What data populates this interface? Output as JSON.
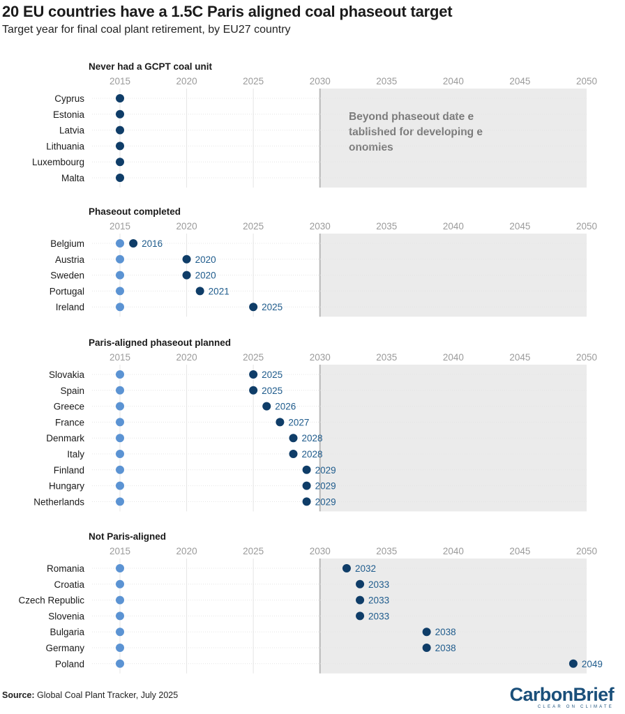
{
  "title": "20 EU countries have a 1.5C Paris aligned coal phaseout target",
  "subtitle": "Target year for final coal plant retirement, by EU27 country",
  "source_label": "Source:",
  "source_text": " Global Coal Plant Tracker, July 2025",
  "logo": {
    "main": "CarbonBrief",
    "tagline": "CLEAR ON CLIMATE"
  },
  "colors": {
    "dot_end": "#0f3d68",
    "dot_start": "#5b93d3",
    "bar_light": "#a9c6e8",
    "bar_dark": "#7b97b4",
    "value_label": "#1e5b8c",
    "shade": "#ebebeb",
    "line_2030": "#b8b8b8",
    "tick_label": "#9a9a9a",
    "grid": "#e4e4e4",
    "annotation": "#7a7a7a"
  },
  "chart_data": {
    "type": "dumbbell",
    "x_axis": {
      "min": 2015,
      "max": 2050,
      "ticks": [
        2015,
        2020,
        2025,
        2030,
        2035,
        2040,
        2045,
        2050
      ]
    },
    "start_year": 2015,
    "shaded_region": {
      "from": 2030,
      "to": 2050
    },
    "annotation": "Beyond phaseout date established for developing economies",
    "panels": [
      {
        "title": "Never had a GCPT coal unit",
        "show_values": false,
        "countries": [
          {
            "name": "Cyprus",
            "year": 2015
          },
          {
            "name": "Estonia",
            "year": 2015
          },
          {
            "name": "Latvia",
            "year": 2015
          },
          {
            "name": "Lithuania",
            "year": 2015
          },
          {
            "name": "Luxembourg",
            "year": 2015
          },
          {
            "name": "Malta",
            "year": 2015
          }
        ]
      },
      {
        "title": "Phaseout completed",
        "show_values": true,
        "countries": [
          {
            "name": "Belgium",
            "year": 2016
          },
          {
            "name": "Austria",
            "year": 2020
          },
          {
            "name": "Sweden",
            "year": 2020
          },
          {
            "name": "Portugal",
            "year": 2021
          },
          {
            "name": "Ireland",
            "year": 2025
          }
        ]
      },
      {
        "title": "Paris-aligned phaseout planned",
        "show_values": true,
        "countries": [
          {
            "name": "Slovakia",
            "year": 2025
          },
          {
            "name": "Spain",
            "year": 2025
          },
          {
            "name": "Greece",
            "year": 2026
          },
          {
            "name": "France",
            "year": 2027
          },
          {
            "name": "Denmark",
            "year": 2028
          },
          {
            "name": "Italy",
            "year": 2028
          },
          {
            "name": "Finland",
            "year": 2029
          },
          {
            "name": "Hungary",
            "year": 2029
          },
          {
            "name": "Netherlands",
            "year": 2029
          }
        ]
      },
      {
        "title": "Not Paris-aligned",
        "show_values": true,
        "countries": [
          {
            "name": "Romania",
            "year": 2032
          },
          {
            "name": "Croatia",
            "year": 2033
          },
          {
            "name": "Czech Republic",
            "year": 2033
          },
          {
            "name": "Slovenia",
            "year": 2033
          },
          {
            "name": "Bulgaria",
            "year": 2038
          },
          {
            "name": "Germany",
            "year": 2038
          },
          {
            "name": "Poland",
            "year": 2049
          }
        ]
      }
    ]
  }
}
